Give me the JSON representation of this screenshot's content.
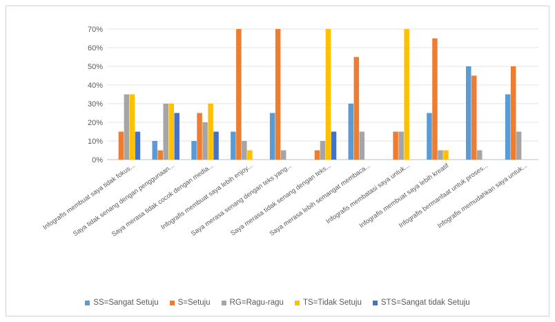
{
  "chart_data": {
    "type": "bar",
    "ylim": [
      0,
      70
    ],
    "yticks": [
      "0%",
      "10%",
      "20%",
      "30%",
      "40%",
      "50%",
      "60%",
      "70%"
    ],
    "grid": true,
    "legend_position": "bottom",
    "categories": [
      "Infografis membuat saya tidak fokus...",
      "Saya tidak senang dengan penggunaan...",
      "Saya merasa tidak cocok dengan media...",
      "Infografis membuat saya lebih enjoy...",
      "Saya merasa senang dengan teks yang...",
      "Saya merasa tidak senang dengan teks...",
      "Saya merasa lebih semangat membaca...",
      "Infografis membatasi saya untuk...",
      "Infografis membuat saya lebih kreatif",
      "Infografis bermanfaat untuk proses...",
      "Infografis memudahkan saya untuk..."
    ],
    "series": [
      {
        "name": "SS=Sangat Setuju",
        "color": "#5b9bd5",
        "values": [
          0,
          10,
          10,
          15,
          25,
          0,
          30,
          0,
          25,
          50,
          35
        ]
      },
      {
        "name": "S=Setuju",
        "color": "#ed7d31",
        "values": [
          15,
          5,
          25,
          70,
          70,
          5,
          55,
          15,
          65,
          45,
          50
        ]
      },
      {
        "name": "RG=Ragu-ragu",
        "color": "#a5a5a5",
        "values": [
          35,
          30,
          20,
          10,
          5,
          10,
          15,
          15,
          5,
          5,
          15
        ]
      },
      {
        "name": "TS=Tidak Setuju",
        "color": "#ffc000",
        "values": [
          35,
          30,
          30,
          5,
          0,
          70,
          0,
          70,
          5,
          0,
          0
        ]
      },
      {
        "name": "STS=Sangat tidak Setuju",
        "color": "#4472c4",
        "values": [
          15,
          25,
          15,
          0,
          0,
          15,
          0,
          0,
          0,
          0,
          0
        ]
      }
    ]
  }
}
